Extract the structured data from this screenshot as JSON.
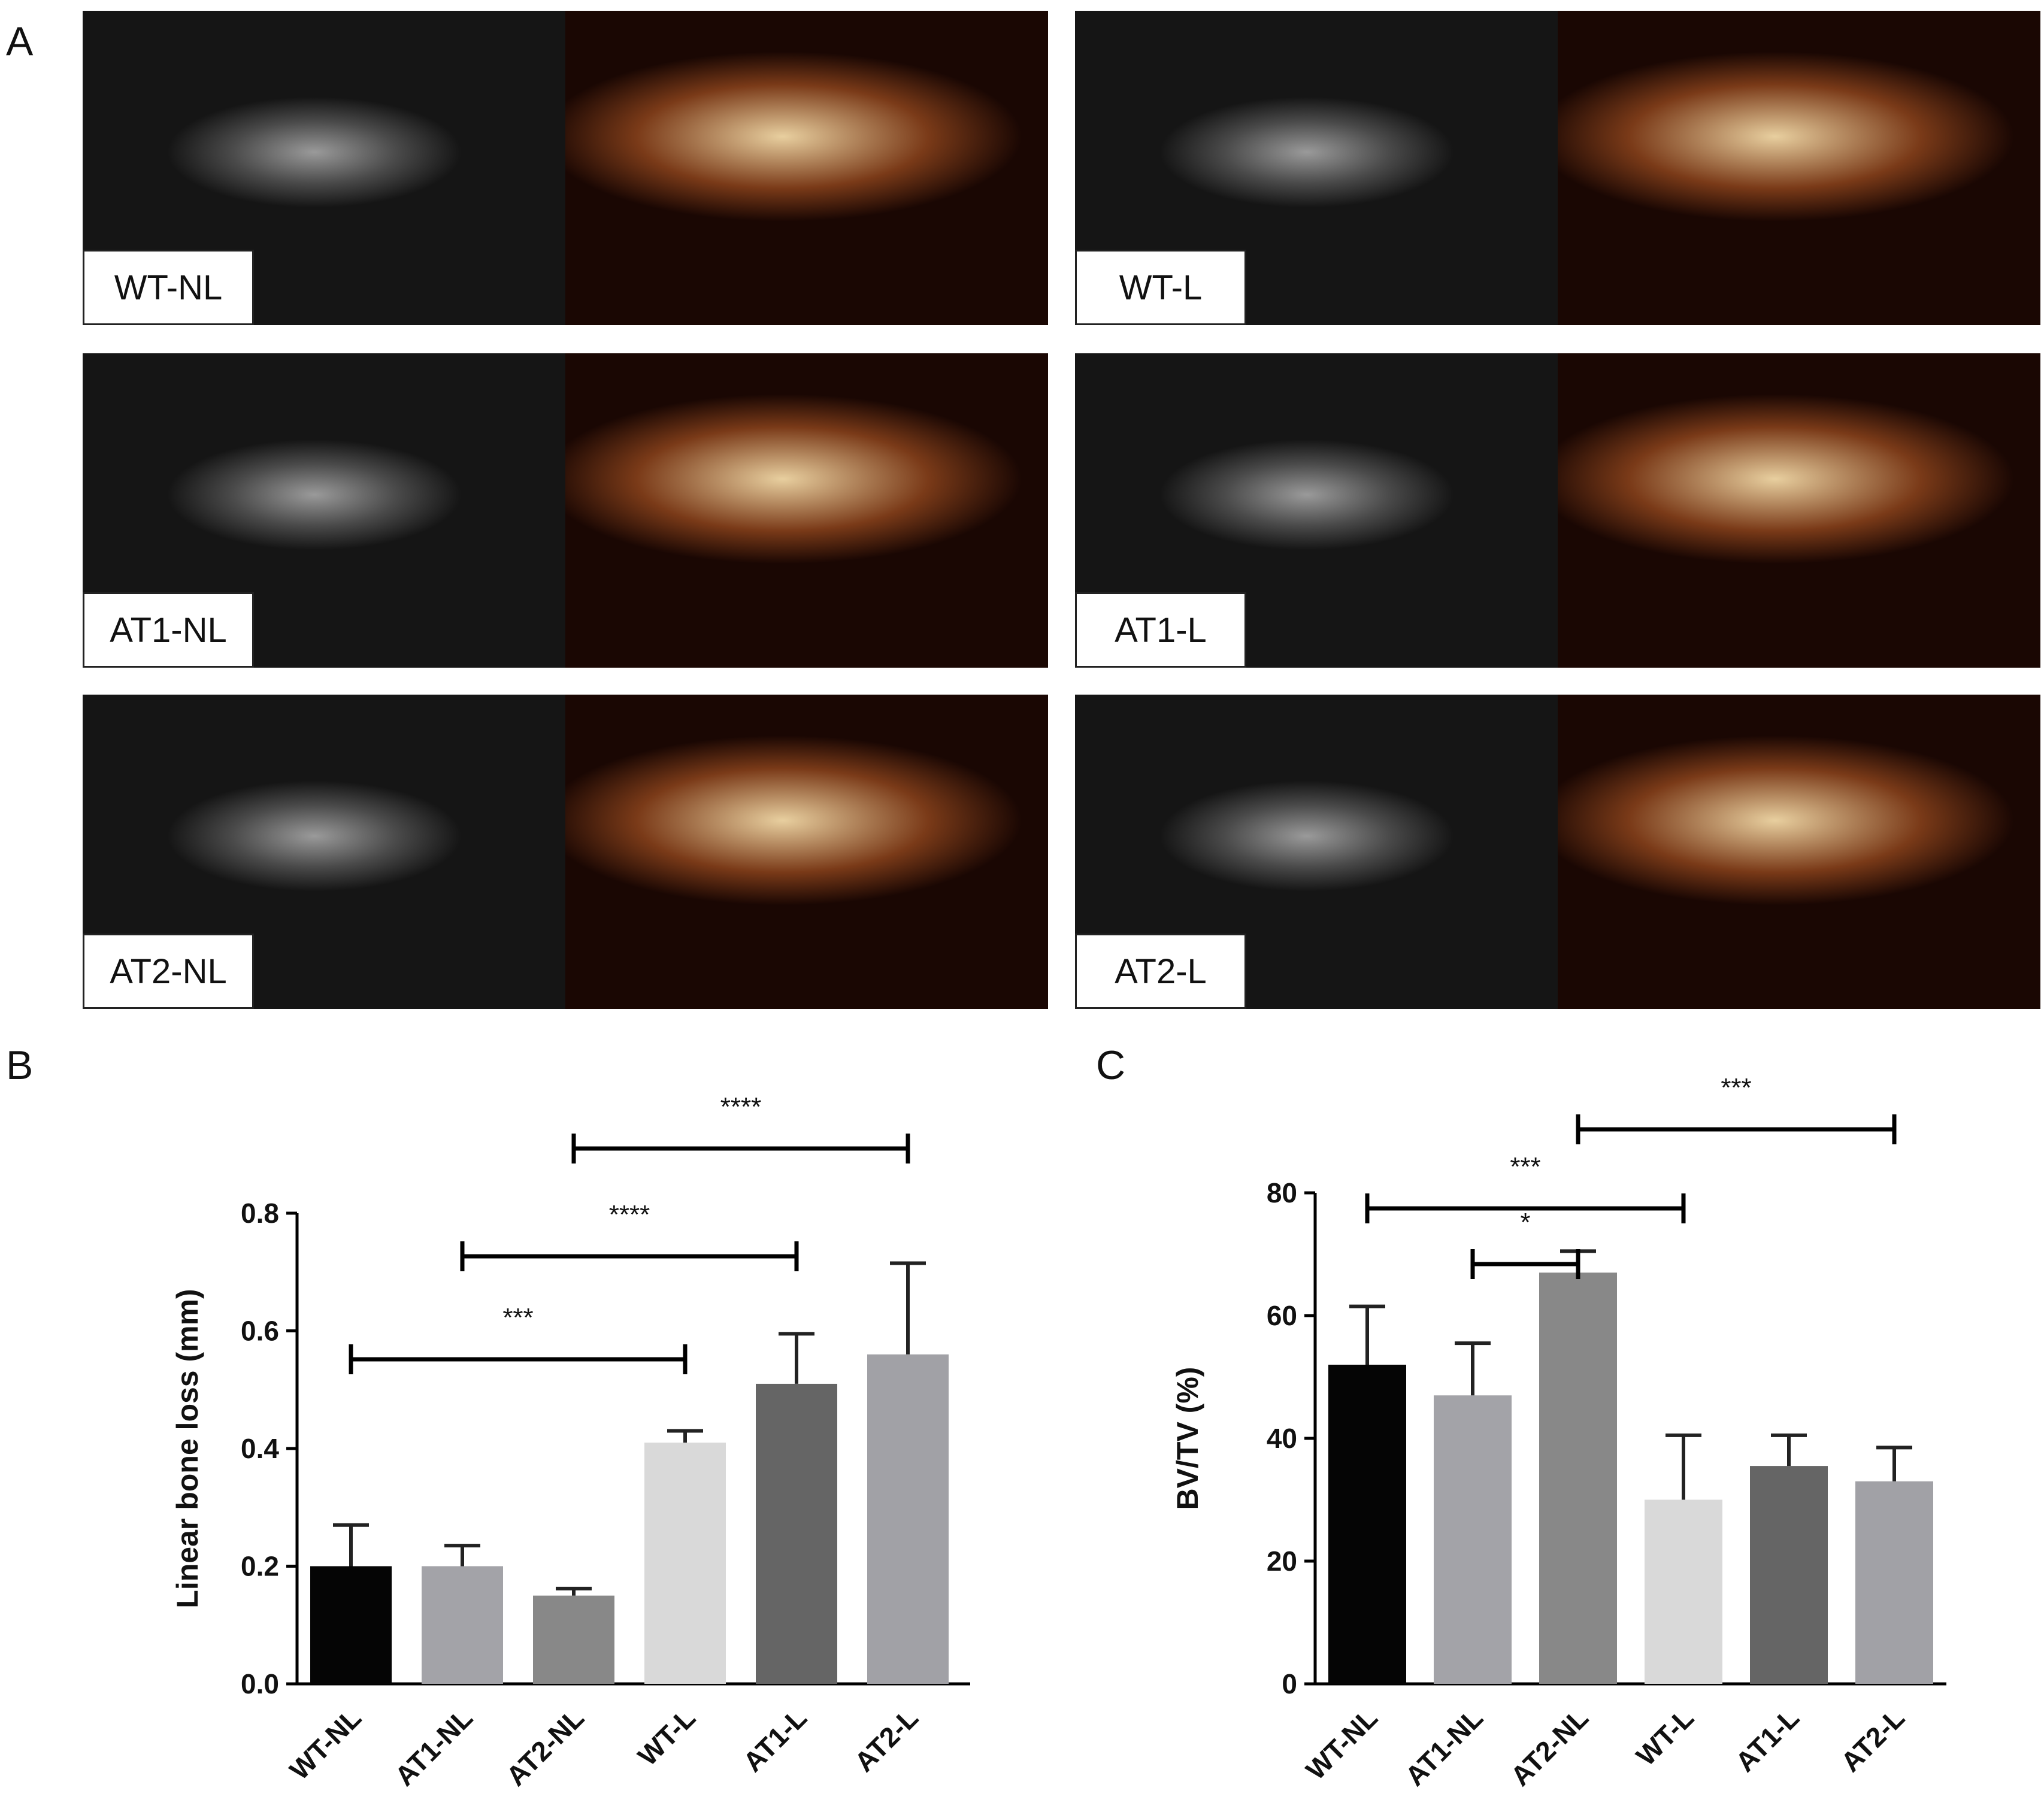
{
  "panel_letters": {
    "a": "A",
    "b": "B",
    "c": "C"
  },
  "image_panels": [
    {
      "label": "WT-NL"
    },
    {
      "label": "WT-L"
    },
    {
      "label": "AT1-NL"
    },
    {
      "label": "AT1-L"
    },
    {
      "label": "AT2-NL"
    },
    {
      "label": "AT2-L"
    }
  ],
  "colors": {
    "WT-NL": "#050505",
    "AT1-NL": "#a3a3a8",
    "AT2-NL": "#888888",
    "WT-L": "#d9d9d9",
    "AT1-L": "#656565",
    "AT2-L": "#a1a1a6",
    "ct_background": "#0b0b0b",
    "render_tone": "#7a3a18",
    "render_bone": "#e8cf9f"
  },
  "chart_data": [
    {
      "type": "bar",
      "panel": "B",
      "categories": [
        "WT-NL",
        "AT1-NL",
        "AT2-NL",
        "WT-L",
        "AT1-L",
        "AT2-L"
      ],
      "values": [
        0.2,
        0.2,
        0.15,
        0.41,
        0.51,
        0.56
      ],
      "errors": [
        0.07,
        0.035,
        0.012,
        0.02,
        0.085,
        0.155
      ],
      "ylabel": "Linear bone loss (mm)",
      "xlabel": "",
      "ylim": [
        0.0,
        0.8
      ],
      "yticks": [
        "0.0",
        "0.2",
        "0.4",
        "0.6",
        "0.8"
      ],
      "significance": [
        {
          "from": "WT-NL",
          "to": "WT-L",
          "label": "***"
        },
        {
          "from": "AT1-NL",
          "to": "AT1-L",
          "label": "****"
        },
        {
          "from": "AT2-NL",
          "to": "AT2-L",
          "label": "****"
        }
      ]
    },
    {
      "type": "bar",
      "panel": "C",
      "categories": [
        "WT-NL",
        "AT1-NL",
        "AT2-NL",
        "WT-L",
        "AT1-L",
        "AT2-L"
      ],
      "values": [
        52,
        47,
        67,
        30,
        35.5,
        33
      ],
      "errors": [
        9.5,
        8.5,
        3.5,
        10.5,
        5,
        5.5
      ],
      "ylabel": "BV/TV (%)",
      "xlabel": "",
      "ylim": [
        0,
        80
      ],
      "yticks": [
        "0",
        "20",
        "40",
        "60",
        "80"
      ],
      "significance": [
        {
          "from": "AT1-NL",
          "to": "AT2-NL",
          "label": "*"
        },
        {
          "from": "WT-NL",
          "to": "WT-L",
          "label": "***"
        },
        {
          "from": "AT2-NL",
          "to": "AT2-L",
          "label": "***"
        }
      ]
    }
  ]
}
